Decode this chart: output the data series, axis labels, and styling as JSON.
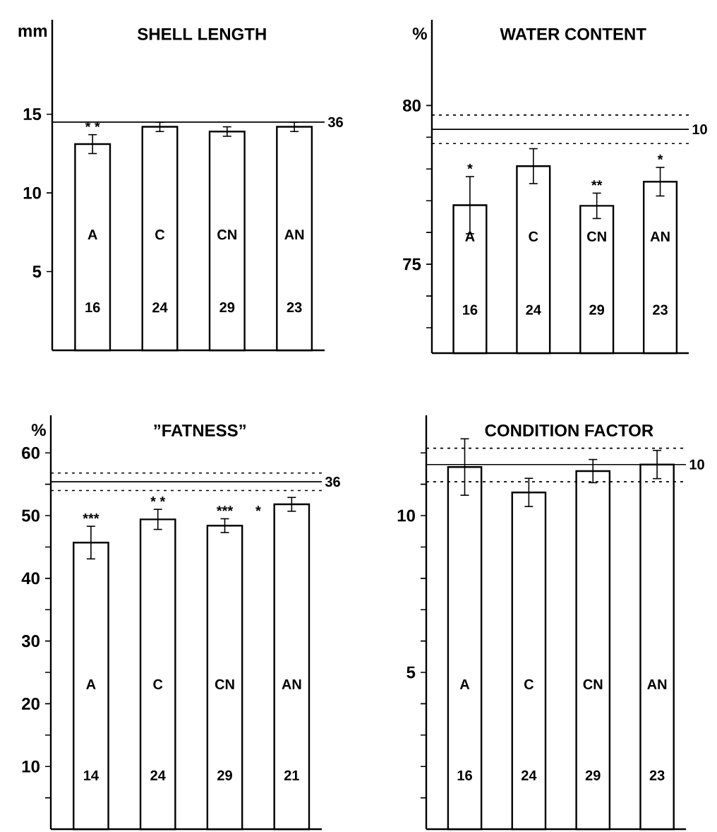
{
  "chart_data": [
    {
      "type": "bar",
      "title": "SHELL   LENGTH",
      "ylabel": "mm",
      "categories": [
        "A",
        "C",
        "CN",
        "AN"
      ],
      "values": [
        13.1,
        14.2,
        13.9,
        14.2
      ],
      "errors": [
        0.6,
        0.3,
        0.3,
        0.3
      ],
      "color": "#ffffff",
      "ylim": [
        0,
        21
      ],
      "yticks": [
        5,
        10,
        15
      ],
      "ref_lines": [
        {
          "axis": "y",
          "value": 14.5
        }
      ],
      "annotations": [
        "16",
        "24",
        "29",
        "23",
        {
          "text": "* *",
          "x": "A",
          "y": 13.1
        },
        {
          "text": "36",
          "x": "AN",
          "y": 14.5
        }
      ]
    },
    {
      "type": "bar",
      "title": "WATER   CONTENT",
      "ylabel": "%",
      "categories": [
        "A",
        "C",
        "CN",
        "AN"
      ],
      "values": [
        76.86,
        78.09,
        76.84,
        77.6
      ],
      "errors": [
        0.9,
        0.55,
        0.4,
        0.45
      ],
      "color": "#ffffff",
      "ylim": [
        72.2,
        82.7
      ],
      "yticks": [
        {
          "value": 73,
          "label": null
        },
        {
          "value": 74,
          "label": null
        },
        75,
        {
          "value": 76,
          "label": null
        },
        {
          "value": 77,
          "label": null
        },
        {
          "value": 78,
          "label": null
        },
        {
          "value": 79,
          "label": null
        },
        80
      ],
      "ref_lines": [
        {
          "axis": "y",
          "value": 79.25
        },
        {
          "axis": "y",
          "value": 79.7,
          "line_style": "dashed"
        },
        {
          "axis": "y",
          "value": 78.8,
          "line_style": "dashed"
        }
      ],
      "annotations": [
        "16",
        "24",
        "29",
        "23",
        {
          "text": "*",
          "x": "A",
          "y": 76.86
        },
        {
          "text": "**",
          "x": "CN",
          "y": 76.84
        },
        {
          "text": "*",
          "x": "AN",
          "y": 77.6
        },
        {
          "text": "10",
          "x": "AN",
          "y": 79.25
        }
      ]
    },
    {
      "type": "bar",
      "title": "”FATNESS”",
      "ylabel": "%",
      "categories": [
        "A",
        "C",
        "CN",
        "AN"
      ],
      "values": [
        45.7,
        49.4,
        48.4,
        51.8
      ],
      "errors": [
        2.6,
        1.6,
        1.1,
        1.1
      ],
      "color": "#ffffff",
      "ylim": [
        0,
        66
      ],
      "yticks": [
        {
          "value": 5,
          "label": null
        },
        10,
        {
          "value": 15,
          "label": null
        },
        20,
        {
          "value": 25,
          "label": null
        },
        30,
        {
          "value": 35,
          "label": null
        },
        40,
        {
          "value": 45,
          "label": null
        },
        50,
        {
          "value": 55,
          "label": null
        },
        60
      ],
      "ref_lines": [
        {
          "axis": "y",
          "value": 55.4
        },
        {
          "axis": "y",
          "value": 56.8,
          "line_style": "dashed"
        },
        {
          "axis": "y",
          "value": 54.0,
          "line_style": "dashed"
        }
      ],
      "annotations": [
        "14",
        "24",
        "29",
        "21",
        {
          "text": "***",
          "x": "A",
          "y": 45.7
        },
        {
          "text": "* *",
          "x": "C",
          "y": 49.4
        },
        {
          "text": "***",
          "x": "CN",
          "y": 48.4
        },
        {
          "text": "*",
          "x": "CN",
          "y": 48.4
        },
        {
          "text": "36",
          "x": "AN",
          "y": 55.4
        }
      ]
    },
    {
      "type": "bar",
      "title": "CONDITION   FACTOR",
      "categories": [
        "A",
        "C",
        "CN",
        "AN"
      ],
      "values": [
        11.55,
        10.74,
        11.42,
        11.63
      ],
      "errors": [
        0.9,
        0.45,
        0.37,
        0.45
      ],
      "color": "#ffffff",
      "ylim": [
        0,
        13.2
      ],
      "yticks": [
        {
          "value": 1,
          "label": null
        },
        {
          "value": 2,
          "label": null
        },
        {
          "value": 3,
          "label": null
        },
        {
          "value": 4,
          "label": null
        },
        5,
        {
          "value": 6,
          "label": null
        },
        {
          "value": 7,
          "label": null
        },
        {
          "value": 8,
          "label": null
        },
        {
          "value": 9,
          "label": null
        },
        10,
        {
          "value": 11,
          "label": null
        },
        {
          "value": 12,
          "label": null
        }
      ],
      "ref_lines": [
        {
          "axis": "y",
          "value": 11.63
        },
        {
          "axis": "y",
          "value": 12.15,
          "line_style": "dashed"
        },
        {
          "axis": "y",
          "value": 11.08,
          "line_style": "dashed"
        }
      ],
      "annotations": [
        "16",
        "24",
        "29",
        "23",
        {
          "text": "10",
          "x": "AN",
          "y": 11.63
        }
      ]
    }
  ]
}
